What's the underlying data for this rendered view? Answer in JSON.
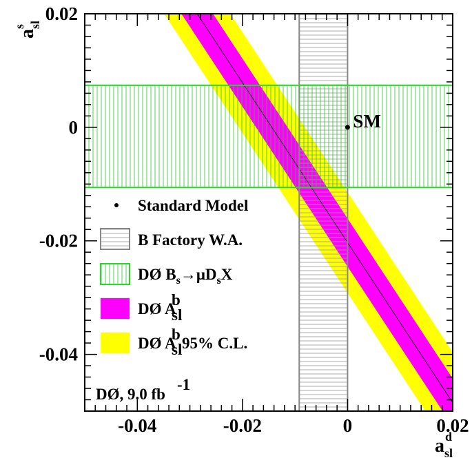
{
  "chart_data": {
    "type": "area",
    "xlabel": {
      "main": "a",
      "sup": "d",
      "sub": "sl"
    },
    "ylabel": {
      "main": "a",
      "sup": "s",
      "sub": "sl"
    },
    "xlim": [
      -0.05,
      0.02
    ],
    "ylim": [
      -0.05,
      0.02
    ],
    "x_ticks": [
      -0.04,
      -0.02,
      0,
      0.02
    ],
    "x_tick_labels": [
      "-0.04",
      "-0.02",
      "0",
      "0.02"
    ],
    "y_ticks": [
      -0.04,
      -0.02,
      0,
      0.02
    ],
    "y_tick_labels": [
      "-0.04",
      "-0.02",
      "0",
      "0.02"
    ],
    "standard_model": {
      "x": 0.0,
      "y": 0.0,
      "label": "SM"
    },
    "b_factory_band": {
      "x_range": [
        -0.0092,
        0.0
      ]
    },
    "d0_bs_band": {
      "y_range": [
        -0.0106,
        0.0074
      ]
    },
    "asl_band": {
      "central_line": [
        [
          -0.0286,
          0.02
        ],
        [
          0.02,
          -0.0485
        ]
      ],
      "inner_halfwidth_x": 0.003,
      "outer_halfwidth_x": 0.0063
    },
    "legend": {
      "entries": [
        {
          "symbol": "dot",
          "label": "Standard Model"
        },
        {
          "symbol": "box-gray-hatched",
          "label": "B Factory W.A."
        },
        {
          "symbol": "box-green-hatched",
          "label": "DØ B",
          "sub1": "s",
          "mid": "→μD",
          "sub2": "s",
          "tail": "X"
        },
        {
          "symbol": "box-magenta",
          "label": "DØ A",
          "sup": "b",
          "sub": "sl",
          "tail": ""
        },
        {
          "symbol": "box-yellow",
          "label": "DØ A",
          "sup": "b",
          "sub": "sl",
          "tail": " 95% C.L."
        }
      ]
    },
    "annotation": {
      "text": "DØ, 9.0 fb",
      "sup": "-1"
    },
    "colors": {
      "yellow": "#ffff00",
      "magenta": "#ff00ff",
      "green": "#22dd22",
      "gray": "#888888"
    },
    "legend_placement": "bottom-left",
    "grid": false
  }
}
